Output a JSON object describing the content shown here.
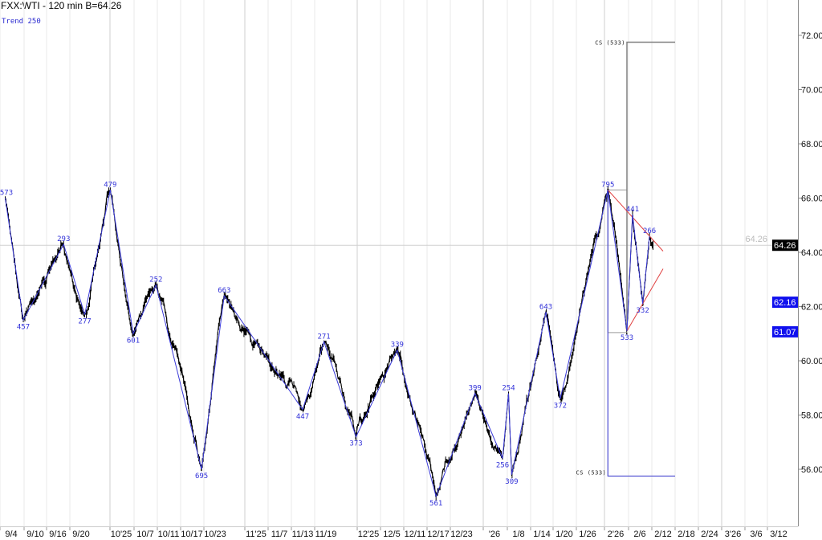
{
  "header": {
    "title": "FXX:WTI - 120 min  B=64.26",
    "study_label": "Trend 250"
  },
  "colors": {
    "price": "#000000",
    "zigzag": "#3a3ad8",
    "channel": "#e04040",
    "cs_upper": "#808080",
    "cs_lower": "#4a4ad0",
    "last_tag": "#000000",
    "level_tag": "#1010ee"
  },
  "chart_data": {
    "type": "line",
    "symbol": "FXX:WTI",
    "interval": "120 min",
    "last_price": 64.26,
    "last_price_label": "64.26",
    "ylim": [
      55,
      73
    ],
    "y_ticks": [
      "72.00",
      "70.00",
      "68.00",
      "66.00",
      "64.00",
      "62.00",
      "60.00",
      "58.00",
      "56.00"
    ],
    "y_tick_values": [
      72,
      70,
      68,
      66,
      64,
      62,
      60,
      58,
      56
    ],
    "price_tags": [
      {
        "label": "64.26",
        "value": 64.26,
        "kind": "last"
      },
      {
        "label": "62.16",
        "value": 62.16,
        "kind": "level"
      },
      {
        "label": "61.07",
        "value": 61.07,
        "kind": "level"
      }
    ],
    "x_ticks": [
      {
        "label": "9/4",
        "date": "2025-09-04"
      },
      {
        "label": "9/10",
        "date": "2025-09-10"
      },
      {
        "label": "9/16",
        "date": "2025-09-16"
      },
      {
        "label": "9/20",
        "date": "2025-09-20"
      },
      {
        "label": "10'25",
        "date": "2025-10-01"
      },
      {
        "label": "10/7",
        "date": "2025-10-07"
      },
      {
        "label": "10/11",
        "date": "2025-10-11"
      },
      {
        "label": "10/17",
        "date": "2025-10-17"
      },
      {
        "label": "10/23",
        "date": "2025-10-23"
      },
      {
        "label": "11'25",
        "date": "2025-11-01"
      },
      {
        "label": "11/7",
        "date": "2025-11-07"
      },
      {
        "label": "11/13",
        "date": "2025-11-13"
      },
      {
        "label": "11/19",
        "date": "2025-11-19"
      },
      {
        "label": "12'25",
        "date": "2025-12-01"
      },
      {
        "label": "12/5",
        "date": "2025-12-05"
      },
      {
        "label": "12/11",
        "date": "2025-12-11"
      },
      {
        "label": "12/17",
        "date": "2025-12-17"
      },
      {
        "label": "12/23",
        "date": "2025-12-23"
      },
      {
        "label": "'26",
        "date": "2026-01-01"
      },
      {
        "label": "1/8",
        "date": "2026-01-08"
      },
      {
        "label": "1/14",
        "date": "2026-01-14"
      },
      {
        "label": "1/20",
        "date": "2026-01-20"
      },
      {
        "label": "1/26",
        "date": "2026-01-26"
      },
      {
        "label": "2'26",
        "date": "2026-02-01"
      },
      {
        "label": "2/6",
        "date": "2026-02-06"
      },
      {
        "label": "2/12",
        "date": "2026-02-12"
      },
      {
        "label": "2/18",
        "date": "2026-02-18"
      },
      {
        "label": "2/24",
        "date": "2026-02-24"
      },
      {
        "label": "3'26",
        "date": "2026-03-01"
      },
      {
        "label": "3/6",
        "date": "2026-03-06"
      },
      {
        "label": "3/12",
        "date": "2026-03-12"
      }
    ],
    "pivots": [
      {
        "label": "573",
        "date": "2025-09-02T12:00",
        "price": 66.0
      },
      {
        "label": "457",
        "date": "2025-09-07T00:00",
        "price": 61.5
      },
      {
        "label": "293",
        "date": "2025-09-17T00:00",
        "price": 64.3
      },
      {
        "label": "277",
        "date": "2025-09-21T00:00",
        "price": 61.7
      },
      {
        "label": "479",
        "date": "2025-09-28T00:00",
        "price": 66.3
      },
      {
        "label": "601",
        "date": "2025-10-04T00:00",
        "price": 61.0
      },
      {
        "label": "252",
        "date": "2025-10-08T20:00",
        "price": 62.8
      },
      {
        "label": "695",
        "date": "2025-10-19T12:00",
        "price": 56.0
      },
      {
        "label": "663",
        "date": "2025-10-25T00:00",
        "price": 62.4
      },
      {
        "label": "447",
        "date": "2025-11-13T00:00",
        "price": 58.2
      },
      {
        "label": "271",
        "date": "2025-11-18T12:00",
        "price": 60.7
      },
      {
        "label": "373",
        "date": "2025-11-27T12:00",
        "price": 57.2
      },
      {
        "label": "339",
        "date": "2025-12-06T10:00",
        "price": 60.4
      },
      {
        "label": "561",
        "date": "2025-12-16T10:00",
        "price": 55.0
      },
      {
        "label": "399",
        "date": "2025-12-26T16:00",
        "price": 58.8
      },
      {
        "label": "256",
        "date": "2026-01-03T08:00",
        "price": 56.4
      },
      {
        "label": "254",
        "date": "2026-01-05T02:00",
        "price": 58.8
      },
      {
        "label": "309",
        "date": "2026-01-06T00:00",
        "price": 55.8
      },
      {
        "label": "643",
        "date": "2026-01-15T02:00",
        "price": 61.8
      },
      {
        "label": "372",
        "date": "2026-01-18T22:00",
        "price": 58.6
      },
      {
        "label": "795",
        "date": "2026-01-30T08:00",
        "price": 66.3
      },
      {
        "label": "533",
        "date": "2026-02-03T08:00",
        "price": 61.1
      },
      {
        "label": "441",
        "date": "2026-02-04T12:00",
        "price": 65.4
      },
      {
        "label": "332",
        "date": "2026-02-06T18:00",
        "price": 62.1
      },
      {
        "label": "266",
        "date": "2026-02-08T12:00",
        "price": 64.6
      }
    ],
    "last_bar_date": "2026-02-09T00:00",
    "cs_boxes": [
      {
        "label": "CS (533)",
        "level": 71.75,
        "position": "upper"
      },
      {
        "label": "CS (533)",
        "level": 55.75,
        "position": "lower"
      }
    ],
    "grid": true
  }
}
